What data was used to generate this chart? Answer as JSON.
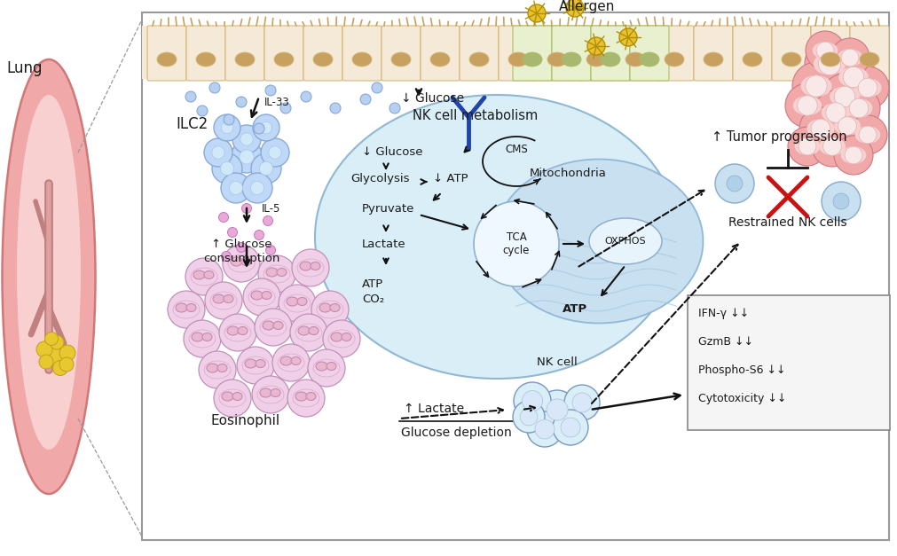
{
  "background_color": "#ffffff",
  "lung_color": "#f0a8a8",
  "lung_inner": "#f8d0d0",
  "lung_hilum": "#e09090",
  "epithelial_bg": "#f5ead8",
  "epithelial_border": "#d4b878",
  "epithelial_nucleus": "#c8a060",
  "epithelial_green_bg": "#e8f0d0",
  "epithelial_green_border": "#a8c060",
  "epithelial_green_nucleus": "#a8b870",
  "cilia_color": "#c8a060",
  "allergen_color": "#e8c030",
  "allergen_border": "#b09000",
  "tumor_color": "#f0a8a8",
  "tumor_border": "#d07880",
  "tumor_inner": "#f8d0d0",
  "ilc2_color": "#c0d8f8",
  "ilc2_border": "#88aad8",
  "ilc2_nucleus": "#a0c0e8",
  "nk_main_fill": "#daeef8",
  "nk_main_border": "#90b8d0",
  "mito_fill": "#c8e0f0",
  "mito_border": "#90b8d8",
  "mito_cristae": "#a8c8e0",
  "tca_fill": "#f0f8ff",
  "tca_border": "#90b0cc",
  "oxphos_fill": "#e8f4fc",
  "oxphos_border": "#90b0cc",
  "nk_bottom_color": "#b0c8e8",
  "nk_bottom_border": "#7898c0",
  "nk_bottom_nucleus": "#d0d8f0",
  "eosinophil_color": "#f0d0e8",
  "eosinophil_border": "#c090b8",
  "eosinophil_nucleus": "#e0a8c8",
  "nk_restrained_color": "#c8e0f0",
  "nk_restrained_border": "#88b0c8",
  "blue_dot": "#b8d0f0",
  "blue_dot_border": "#88a8d8",
  "purple_dot": "#e8a8d8",
  "purple_dot_border": "#c878b8",
  "arrow_color": "#111111",
  "text_color": "#1a1a1a",
  "red_x_color": "#cc1111",
  "box_fill": "#f5f5f5",
  "box_border": "#888888",
  "receptor_color": "#2244aa",
  "labels": {
    "lung": "Lung",
    "allergen": "Allergen",
    "il33": "IL-33",
    "ilc2": "ILC2",
    "il5": "IL-5",
    "glucose_up": "↑ Glucose\nconsumption",
    "eosinophil": "Eosinophil",
    "nk_metabolism": "NK cell metabolism",
    "down_glucose_top": "↓ Glucose",
    "down_glucose_cell": "↓ Glucose",
    "glycolysis": "Glycolysis",
    "down_atp": "↓ ATP",
    "arrow_label": "→",
    "pyruvate": "Pyruvate",
    "lactate": "Lactate",
    "atp_co2": "ATP\nCO₂",
    "cms": "CMS",
    "tca": "TCA\ncycle",
    "oxphos": "OXPHOS",
    "mitochondria": "Mitochondria",
    "atp": "ATP",
    "up_lactate": "↑ Lactate",
    "glucose_depletion": "Glucose depletion",
    "nk_cell": "NK cell",
    "tumor_progression": "↑ Tumor progression",
    "restrained_nk": "Restrained NK cells",
    "ifn": "IFN-γ ↓↓",
    "gzmb": "GzmB ↓↓",
    "phospho": "Phospho-S6 ↓↓",
    "cytotoxicity": "Cytotoxicity ↓↓"
  }
}
